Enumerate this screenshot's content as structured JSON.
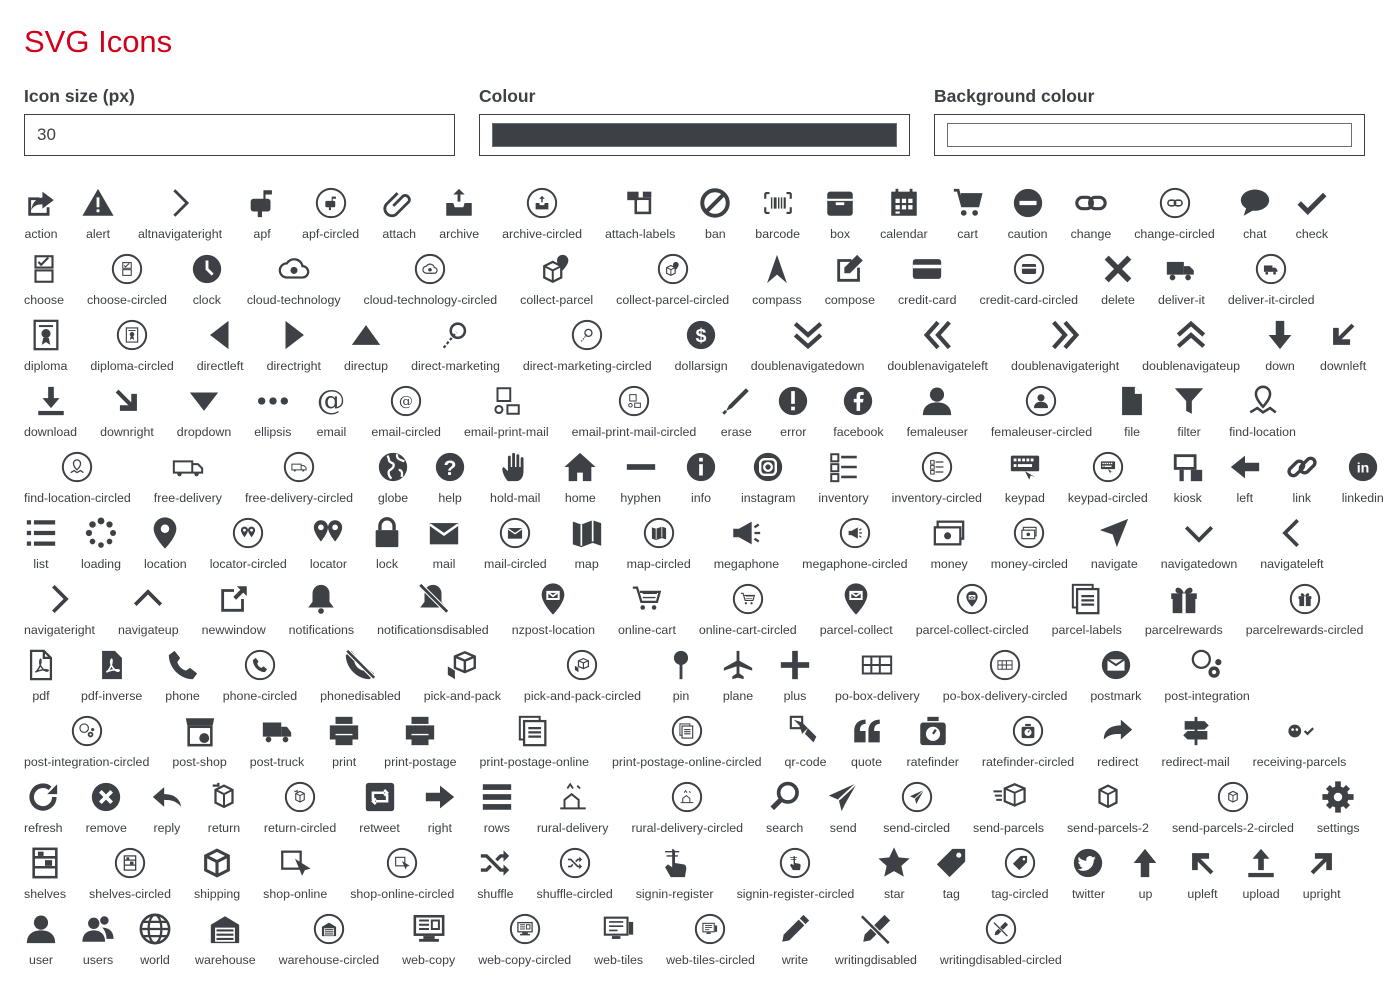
{
  "page": {
    "title": "SVG Icons"
  },
  "controls": {
    "size_label": "Icon size (px)",
    "size_value": "30",
    "colour_label": "Colour",
    "colour_value": "#3d4045",
    "bg_label": "Background colour",
    "bg_value": "#ffffff"
  },
  "icons": [
    [
      "action",
      "alert",
      "altnavigateright",
      "apf",
      "apf-circled",
      "attach",
      "archive",
      "archive-circled",
      "attach-labels",
      "ban",
      "barcode",
      "box",
      "calendar",
      "cart",
      "caution",
      "change",
      "change-circled",
      "chat",
      "check"
    ],
    [
      "choose",
      "choose-circled",
      "clock",
      "cloud-technology",
      "cloud-technology-circled",
      "collect-parcel",
      "collect-parcel-circled",
      "compass",
      "compose",
      "credit-card",
      "credit-card-circled",
      "delete",
      "deliver-it",
      "deliver-it-circled"
    ],
    [
      "diploma",
      "diploma-circled",
      "directleft",
      "directright",
      "directup",
      "direct-marketing",
      "direct-marketing-circled",
      "dollarsign",
      "doublenavigatedown",
      "doublenavigateleft",
      "doublenavigateright",
      "doublenavigateup",
      "down",
      "downleft"
    ],
    [
      "download",
      "downright",
      "dropdown",
      "ellipsis",
      "email",
      "email-circled",
      "email-print-mail",
      "email-print-mail-circled",
      "erase",
      "error",
      "facebook",
      "femaleuser",
      "femaleuser-circled",
      "file",
      "filter",
      "find-location"
    ],
    [
      "find-location-circled",
      "free-delivery",
      "free-delivery-circled",
      "globe",
      "help",
      "hold-mail",
      "home",
      "hyphen",
      "info",
      "instagram",
      "inventory",
      "inventory-circled",
      "keypad",
      "keypad-circled",
      "kiosk",
      "left",
      "link",
      "linkedin"
    ],
    [
      "list",
      "loading",
      "location",
      "locator-circled",
      "locator",
      "lock",
      "mail",
      "mail-circled",
      "map",
      "map-circled",
      "megaphone",
      "megaphone-circled",
      "money",
      "money-circled",
      "navigate",
      "navigatedown",
      "navigateleft"
    ],
    [
      "navigateright",
      "navigateup",
      "newwindow",
      "notifications",
      "notificationsdisabled",
      "nzpost-location",
      "online-cart",
      "online-cart-circled",
      "parcel-collect",
      "parcel-collect-circled",
      "parcel-labels",
      "parcelrewards",
      "parcelrewards-circled"
    ],
    [
      "pdf",
      "pdf-inverse",
      "phone",
      "phone-circled",
      "phonedisabled",
      "pick-and-pack",
      "pick-and-pack-circled",
      "pin",
      "plane",
      "plus",
      "po-box-delivery",
      "po-box-delivery-circled",
      "postmark",
      "post-integration"
    ],
    [
      "post-integration-circled",
      "post-shop",
      "post-truck",
      "print",
      "print-postage",
      "print-postage-online",
      "print-postage-online-circled",
      "qr-code",
      "quote",
      "ratefinder",
      "ratefinder-circled",
      "redirect",
      "redirect-mail",
      "receiving-parcels"
    ],
    [
      "refresh",
      "remove",
      "reply",
      "return",
      "return-circled",
      "retweet",
      "right",
      "rows",
      "rural-delivery",
      "rural-delivery-circled",
      "search",
      "send",
      "send-circled",
      "send-parcels",
      "send-parcels-2",
      "send-parcels-2-circled",
      "settings"
    ],
    [
      "shelves",
      "shelves-circled",
      "shipping",
      "shop-online",
      "shop-online-circled",
      "shuffle",
      "shuffle-circled",
      "signin-register",
      "signin-register-circled",
      "star",
      "tag",
      "tag-circled",
      "twitter",
      "up",
      "upleft",
      "upload",
      "upright"
    ],
    [
      "user",
      "users",
      "world",
      "warehouse",
      "warehouse-circled",
      "web-copy",
      "web-copy-circled",
      "web-tiles",
      "web-tiles-circled",
      "write",
      "writingdisabled",
      "writingdisabled-circled"
    ]
  ]
}
